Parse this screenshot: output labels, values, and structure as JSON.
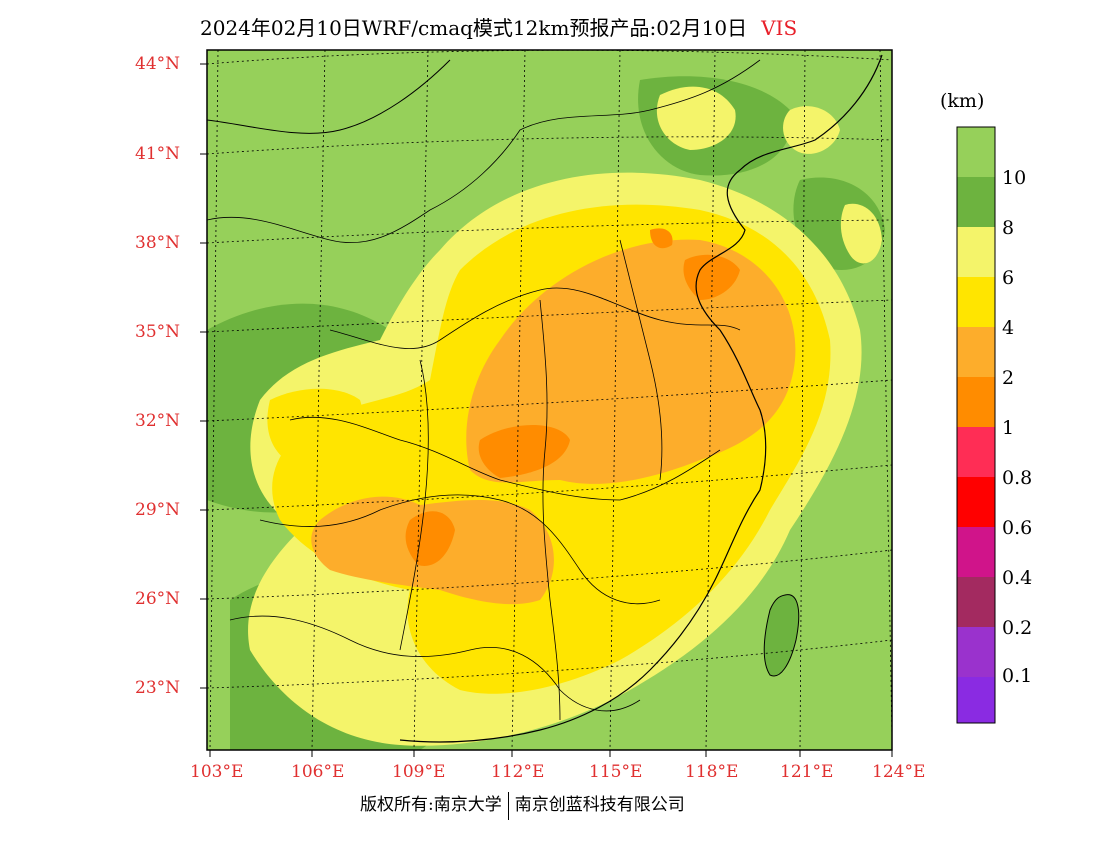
{
  "title": {
    "main": "2024年02月10日WRF/cmaq模式12km预报产品:02月10日",
    "variable": "VIS"
  },
  "lat_labels": [
    "44°N",
    "41°N",
    "38°N",
    "35°N",
    "32°N",
    "29°N",
    "26°N",
    "23°N"
  ],
  "lon_labels": [
    "103°E",
    "106°E",
    "109°E",
    "112°E",
    "115°E",
    "118°E",
    "121°E",
    "124°E"
  ],
  "colorbar": {
    "unit": "(km)",
    "labels": [
      "10",
      "8",
      "6",
      "4",
      "2",
      "1",
      "0.8",
      "0.6",
      "0.4",
      "0.2",
      "0.1"
    ],
    "colors": [
      "#96d05a",
      "#6db33f",
      "#f4f46a",
      "#ffe500",
      "#fdad2b",
      "#ff8c00",
      "#ff2d55",
      "#ff0000",
      "#d0148a",
      "#a32a60",
      "#9a32cd",
      "#8a2be2"
    ]
  },
  "map_colors": {
    "vis_gt10": "#96d05a",
    "vis_8_10": "#6db33f",
    "vis_6_8": "#f4f46a",
    "vis_4_6": "#ffe500",
    "vis_2_4": "#fdad2b",
    "vis_1_2": "#ff8c00",
    "ocean": "#96d05a"
  },
  "footer": {
    "left": "版权所有:南京大学",
    "right": "南京创蓝科技有限公司"
  }
}
